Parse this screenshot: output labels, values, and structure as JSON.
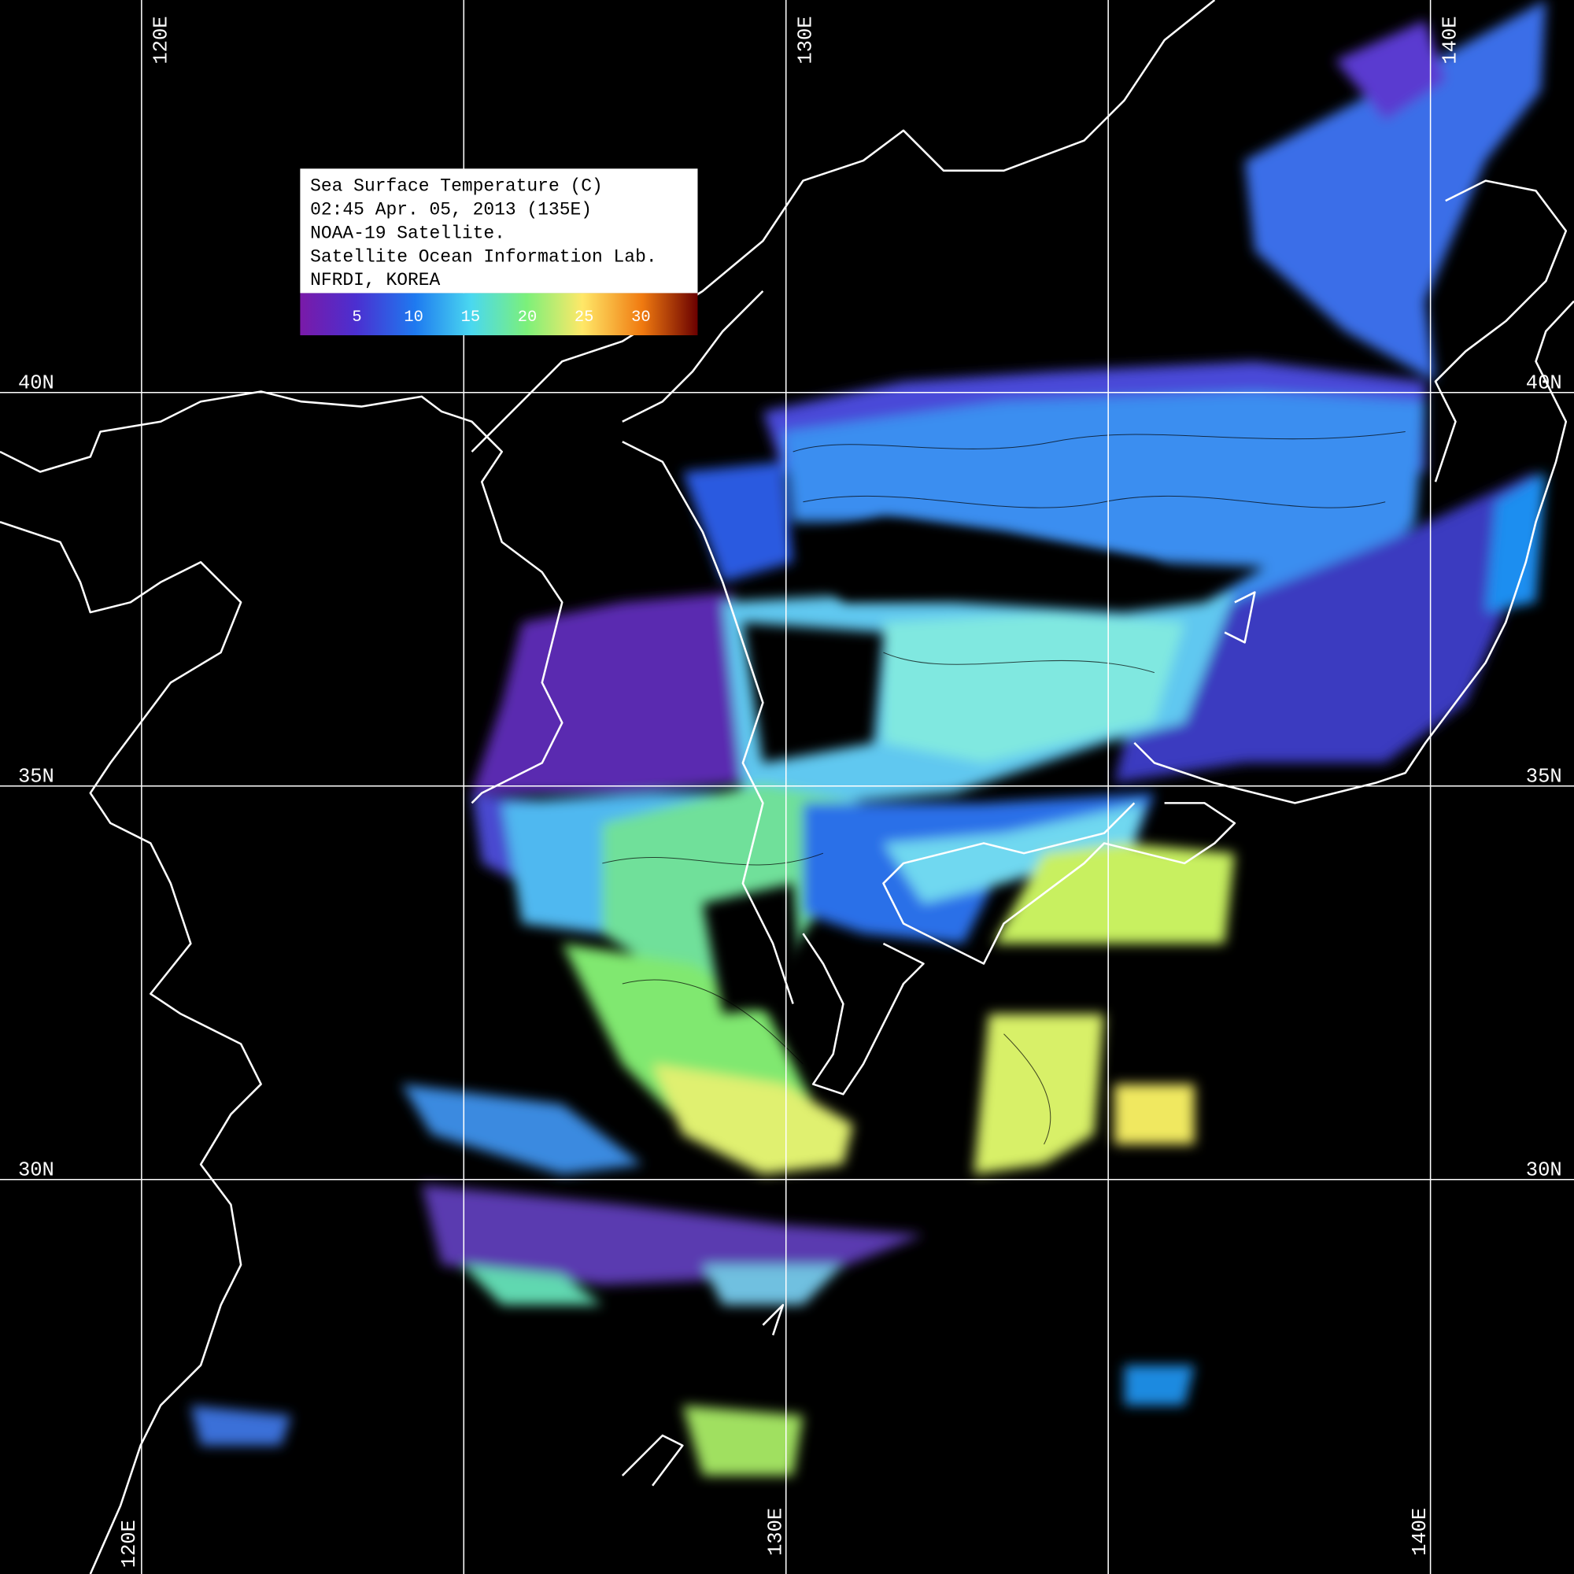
{
  "legend": {
    "lines": [
      "Sea Surface Temperature (C)",
      "02:45 Apr. 05, 2013 (135E)",
      "NOAA-19 Satellite.",
      "Satellite Ocean Information Lab.",
      "NFRDI, KOREA"
    ]
  },
  "colorbar": {
    "range": [
      0,
      35
    ],
    "ticks": [
      5,
      10,
      15,
      20,
      25,
      30
    ]
  },
  "grid": {
    "lon_labels": [
      "120E",
      "130E",
      "140E"
    ],
    "lat_labels": [
      "40N",
      "35N",
      "30N"
    ]
  }
}
